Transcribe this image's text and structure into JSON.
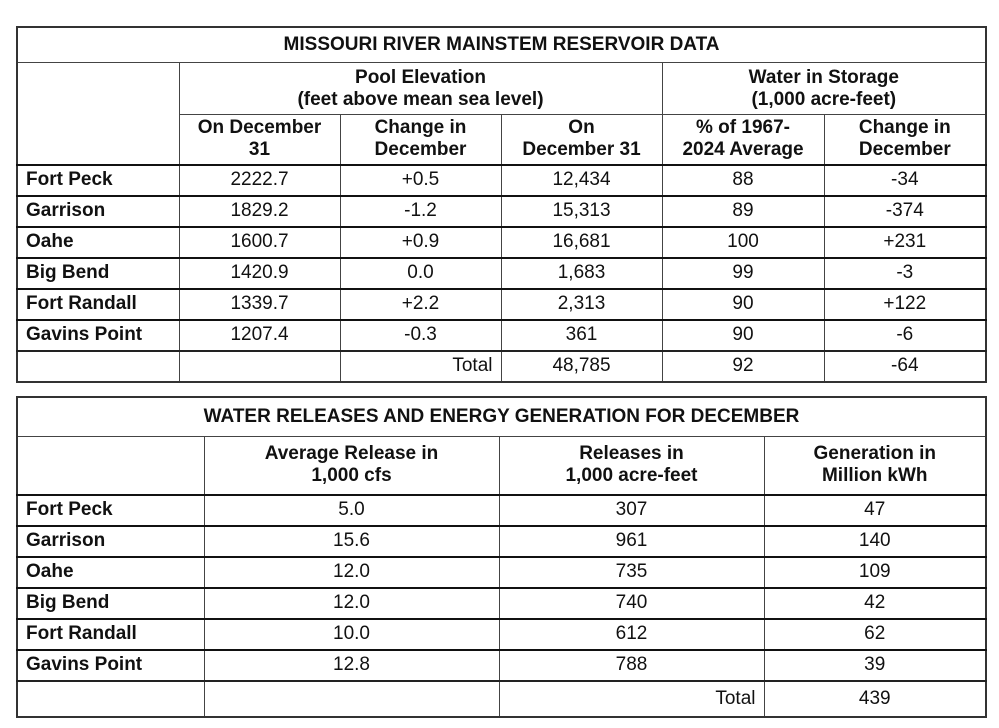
{
  "reservoir_table": {
    "title": "MISSOURI RIVER MAINSTEM RESERVOIR DATA",
    "group_headers": {
      "pool_elevation": "Pool Elevation",
      "pool_elevation_units": "(feet above mean sea level)",
      "water_storage": "Water in Storage",
      "water_storage_units": "(1,000 acre-feet)"
    },
    "columns": [
      [
        "On December",
        "31"
      ],
      [
        "Change in",
        "December"
      ],
      [
        "On",
        "December 31"
      ],
      [
        "% of 1967-",
        "2024 Average"
      ],
      [
        "Change in",
        "December"
      ]
    ],
    "rows": [
      [
        "Fort Peck",
        "2222.7",
        "+0.5",
        "12,434",
        "88",
        "-34"
      ],
      [
        "Garrison",
        "1829.2",
        "-1.2",
        "15,313",
        "89",
        "-374"
      ],
      [
        "Oahe",
        "1600.7",
        "+0.9",
        "16,681",
        "100",
        "+231"
      ],
      [
        "Big Bend",
        "1420.9",
        "0.0",
        "1,683",
        "99",
        "-3"
      ],
      [
        "Fort Randall",
        "1339.7",
        "+2.2",
        "2,313",
        "90",
        "+122"
      ],
      [
        "Gavins Point",
        "1207.4",
        "-0.3",
        "361",
        "90",
        "-6"
      ]
    ],
    "total": {
      "label": "Total",
      "storage": "48,785",
      "percent": "92",
      "change": "-64"
    }
  },
  "releases_table": {
    "title": "WATER RELEASES AND ENERGY GENERATION FOR DECEMBER",
    "columns": [
      [
        "Average Release in",
        "1,000 cfs"
      ],
      [
        "Releases in",
        "1,000 acre-feet"
      ],
      [
        "Generation in",
        "Million kWh"
      ]
    ],
    "rows": [
      [
        "Fort Peck",
        "5.0",
        "307",
        "47"
      ],
      [
        "Garrison",
        "15.6",
        "961",
        "140"
      ],
      [
        "Oahe",
        "12.0",
        "735",
        "109"
      ],
      [
        "Big Bend",
        "12.0",
        "740",
        "42"
      ],
      [
        "Fort Randall",
        "10.0",
        "612",
        "62"
      ],
      [
        "Gavins Point",
        "12.8",
        "788",
        "39"
      ]
    ],
    "total": {
      "label": "Total",
      "generation": "439"
    }
  }
}
